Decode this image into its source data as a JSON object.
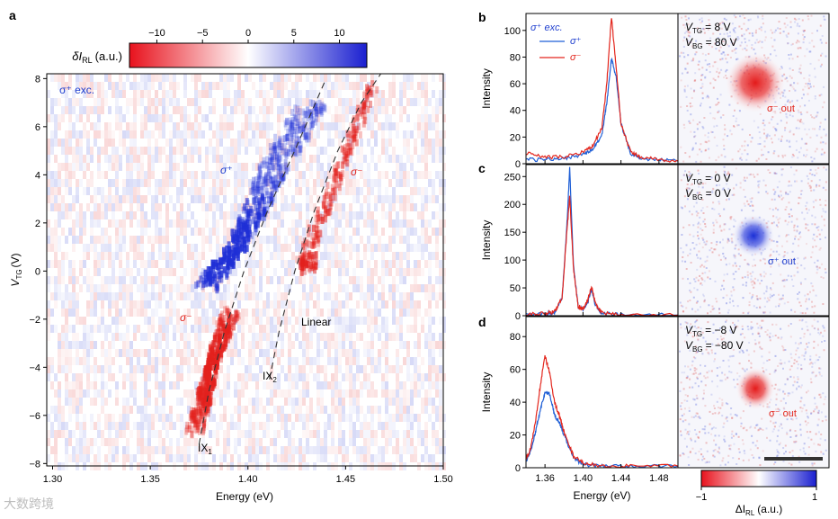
{
  "panel_labels": {
    "a": "a",
    "b": "b",
    "c": "c",
    "d": "d"
  },
  "colors": {
    "red": "#e3261d",
    "blue": "#1f4fd6",
    "dark_red": "#b01818",
    "dark_blue": "#1a2fb8"
  },
  "main_map": {
    "colorbar_label": "δI",
    "colorbar_label_sub": "RL",
    "colorbar_label_unit": "(a.u.)",
    "corner_label": "σ⁺ exc.",
    "annotations": {
      "sigma_plus": "σ⁺",
      "sigma_minus_left": "σ⁻",
      "sigma_minus_right": "σ⁻",
      "linear": "Linear",
      "ix1": "IX",
      "ix1_sub": "1",
      "ix2": "IX",
      "ix2_sub": "2"
    }
  },
  "side_panels": {
    "b": {
      "legend_title": "σ⁺ exc.",
      "legend_plus": "σ⁺",
      "legend_minus": "σ⁻",
      "vtg": "V",
      "vtg_sub": "TG",
      "vtg_val": "= 8 V",
      "vbg": "V",
      "vbg_sub": "BG",
      "vbg_val": "= 80 V",
      "out_label": "σ⁻ out"
    },
    "c": {
      "vtg": "V",
      "vtg_sub": "TG",
      "vtg_val": "= 0 V",
      "vbg": "V",
      "vbg_sub": "BG",
      "vbg_val": "= 0 V",
      "out_label": "σ⁺ out"
    },
    "d": {
      "vtg": "V",
      "vtg_sub": "TG",
      "vtg_val": "= −8 V",
      "vbg": "V",
      "vbg_sub": "BG",
      "vbg_val": "= −80 V",
      "out_label": "σ⁻ out"
    },
    "image_colorbar": {
      "label": "ΔI",
      "label_sub": "RL",
      "label_unit": "(a.u.)",
      "min": "−1",
      "max": "1"
    }
  },
  "watermark": "大数跨境",
  "chart_data": [
    {
      "id": "a",
      "type": "heatmap",
      "title": "",
      "xlabel": "Energy (eV)",
      "ylabel": "V",
      "ylabel_sub": "TG",
      "ylabel_unit": "(V)",
      "xlim": [
        1.297,
        1.5
      ],
      "ylim": [
        -8.1,
        8.2
      ],
      "xticks": [
        1.3,
        1.35,
        1.4,
        1.45,
        1.5
      ],
      "xtick_labels": [
        "1.30",
        "1.35",
        "1.40",
        "1.45",
        "1.50"
      ],
      "yticks": [
        8,
        6,
        4,
        2,
        0,
        -2,
        -4,
        -6,
        -8
      ],
      "ytick_labels": [
        "8",
        "6",
        "4",
        "2",
        "0",
        "−2",
        "−4",
        "−6",
        "−8"
      ],
      "colorbar": {
        "range": [
          -13,
          13
        ],
        "ticks": [
          -10,
          -5,
          0,
          5,
          10
        ],
        "tick_labels": [
          "−10",
          "−5",
          "0",
          "5",
          "10"
        ]
      },
      "features": [
        {
          "name": "sigma-plus-lobe",
          "sign": 1,
          "E": [
            1.378,
            1.392,
            1.402,
            1.41,
            1.42,
            1.432
          ],
          "V": [
            -0.5,
            1.0,
            2.5,
            4.0,
            5.5,
            7.0
          ]
        },
        {
          "name": "sigma-minus-lobe",
          "sign": -1,
          "E": [
            1.372,
            1.377,
            1.383,
            1.39
          ],
          "V": [
            -6.5,
            -5.0,
            -3.2,
            -1.5
          ]
        },
        {
          "name": "sigma-minus-right",
          "sign": -1,
          "E": [
            1.427,
            1.44,
            1.452,
            1.462
          ],
          "V": [
            0.5,
            3.0,
            5.5,
            7.8
          ]
        }
      ],
      "guide_lines": [
        {
          "name": "IX1",
          "E": [
            1.375,
            1.38,
            1.388,
            1.398,
            1.41,
            1.425,
            1.44
          ],
          "V": [
            -7.2,
            -5.0,
            -2.5,
            0.0,
            2.5,
            5.2,
            8.0
          ]
        },
        {
          "name": "IX2",
          "E": [
            1.411,
            1.416,
            1.424,
            1.434,
            1.446,
            1.458,
            1.468
          ],
          "V": [
            -4.5,
            -2.5,
            0.0,
            2.5,
            5.0,
            7.0,
            8.2
          ]
        }
      ]
    },
    {
      "id": "b",
      "type": "line",
      "xlabel": "",
      "ylabel": "Intensity",
      "xlim": [
        1.34,
        1.5
      ],
      "ylim": [
        0,
        110
      ],
      "yticks": [
        0,
        20,
        40,
        60,
        80,
        100
      ],
      "ytick_labels": [
        "0",
        "20",
        "40",
        "60",
        "80",
        "100"
      ],
      "series": [
        {
          "name": "σ⁺",
          "color": "#1f5fd6",
          "x": [
            1.34,
            1.36,
            1.38,
            1.4,
            1.41,
            1.42,
            1.425,
            1.43,
            1.435,
            1.44,
            1.45,
            1.46,
            1.48,
            1.5
          ],
          "y": [
            3,
            3,
            4,
            7,
            10,
            22,
            45,
            79,
            65,
            30,
            8,
            4,
            3,
            2
          ]
        },
        {
          "name": "σ⁻",
          "color": "#e3261d",
          "x": [
            1.34,
            1.36,
            1.38,
            1.4,
            1.41,
            1.42,
            1.425,
            1.43,
            1.435,
            1.44,
            1.45,
            1.46,
            1.48,
            1.5
          ],
          "y": [
            8,
            5,
            5,
            9,
            13,
            27,
            60,
            110,
            72,
            30,
            9,
            5,
            3,
            2
          ]
        }
      ]
    },
    {
      "id": "c",
      "type": "line",
      "xlabel": "",
      "ylabel": "Intensity",
      "xlim": [
        1.34,
        1.5
      ],
      "ylim": [
        0,
        265
      ],
      "yticks": [
        0,
        50,
        100,
        150,
        200,
        250
      ],
      "ytick_labels": [
        "0",
        "50",
        "100",
        "150",
        "200",
        "250"
      ],
      "series": [
        {
          "name": "σ⁺",
          "color": "#1f5fd6",
          "x": [
            1.34,
            1.36,
            1.37,
            1.378,
            1.383,
            1.386,
            1.39,
            1.395,
            1.4,
            1.405,
            1.409,
            1.413,
            1.42,
            1.44,
            1.5
          ],
          "y": [
            2,
            3,
            6,
            30,
            160,
            265,
            90,
            15,
            12,
            25,
            48,
            20,
            4,
            2,
            1
          ]
        },
        {
          "name": "σ⁻",
          "color": "#e3261d",
          "x": [
            1.34,
            1.36,
            1.37,
            1.378,
            1.383,
            1.386,
            1.39,
            1.395,
            1.4,
            1.405,
            1.409,
            1.413,
            1.42,
            1.44,
            1.5
          ],
          "y": [
            3,
            4,
            7,
            32,
            150,
            215,
            85,
            16,
            13,
            28,
            53,
            22,
            5,
            2,
            1
          ]
        }
      ]
    },
    {
      "id": "d",
      "type": "line",
      "xlabel": "Energy (eV)",
      "ylabel": "Intensity",
      "xlim": [
        1.34,
        1.5
      ],
      "ylim": [
        0,
        90
      ],
      "xticks": [
        1.36,
        1.4,
        1.44,
        1.48
      ],
      "xtick_labels": [
        "1.36",
        "1.40",
        "1.44",
        "1.48"
      ],
      "yticks": [
        0,
        20,
        40,
        60,
        80
      ],
      "ytick_labels": [
        "0",
        "20",
        "40",
        "60",
        "80"
      ],
      "series": [
        {
          "name": "σ⁺",
          "color": "#1f5fd6",
          "x": [
            1.34,
            1.345,
            1.35,
            1.355,
            1.36,
            1.365,
            1.37,
            1.375,
            1.38,
            1.39,
            1.4,
            1.42,
            1.45,
            1.5
          ],
          "y": [
            4,
            10,
            22,
            35,
            46,
            45,
            32,
            28,
            20,
            6,
            2,
            1,
            1,
            1
          ]
        },
        {
          "name": "σ⁻",
          "color": "#e3261d",
          "x": [
            1.34,
            1.345,
            1.35,
            1.355,
            1.36,
            1.365,
            1.37,
            1.375,
            1.38,
            1.39,
            1.4,
            1.42,
            1.45,
            1.5
          ],
          "y": [
            5,
            12,
            28,
            50,
            68,
            58,
            40,
            32,
            22,
            7,
            3,
            1,
            1,
            1
          ]
        }
      ]
    }
  ]
}
